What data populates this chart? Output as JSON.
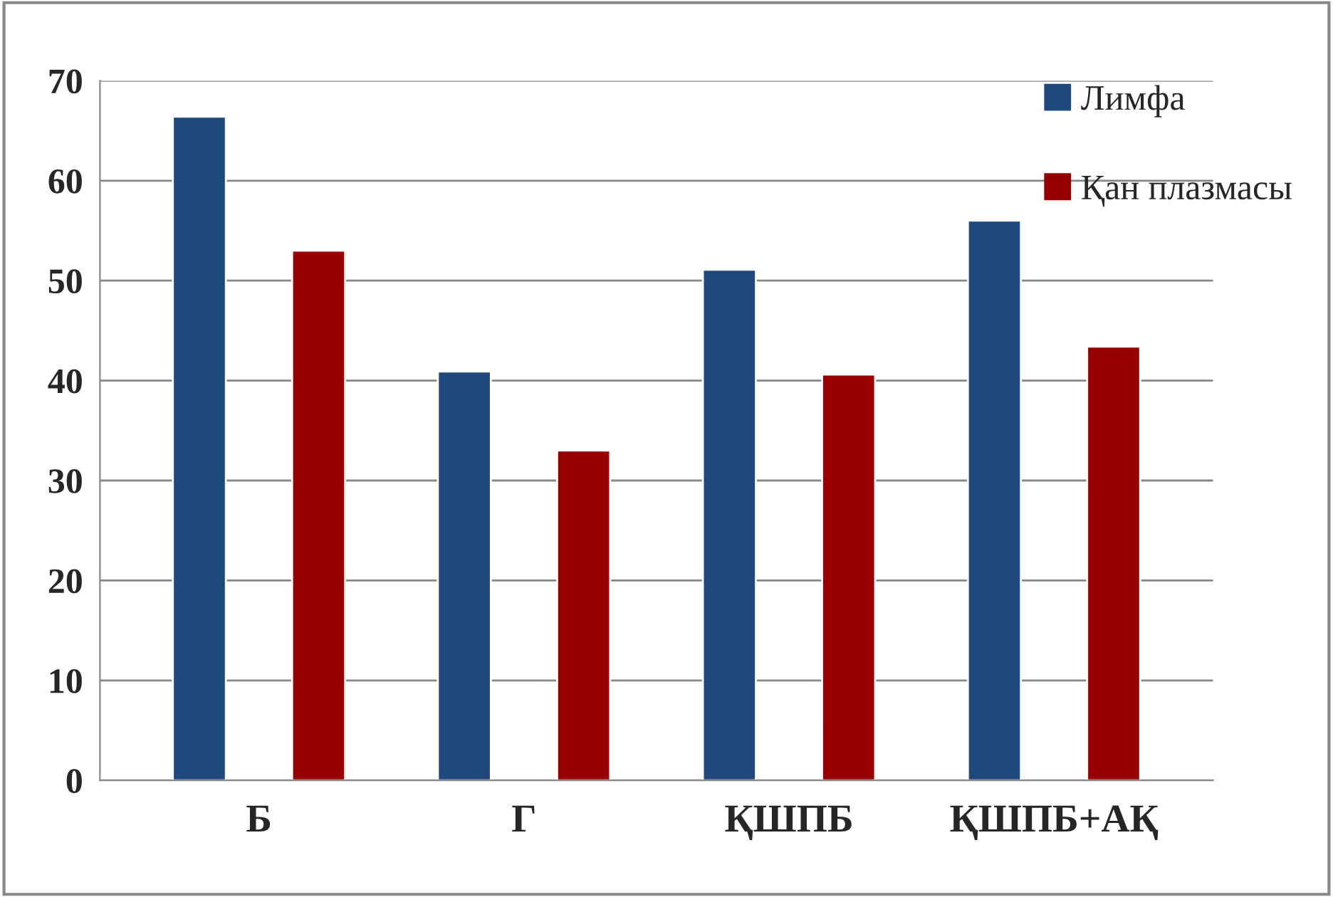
{
  "chart_data": {
    "type": "bar",
    "categories": [
      "Б",
      "Г",
      "ҚШПБ",
      "ҚШПБ+АҚ"
    ],
    "series": [
      {
        "name": "Лимфа",
        "color": "#1f497d",
        "values": [
          66.4,
          40.9,
          51.1,
          56.0
        ]
      },
      {
        "name": "Қан плазмасы",
        "color": "#990000",
        "values": [
          53.0,
          33.0,
          40.6,
          43.4
        ]
      }
    ],
    "ylim": [
      0,
      70
    ],
    "yticks": [
      0,
      10,
      20,
      30,
      40,
      50,
      60,
      70
    ],
    "grid": "y",
    "legend": "top right"
  }
}
